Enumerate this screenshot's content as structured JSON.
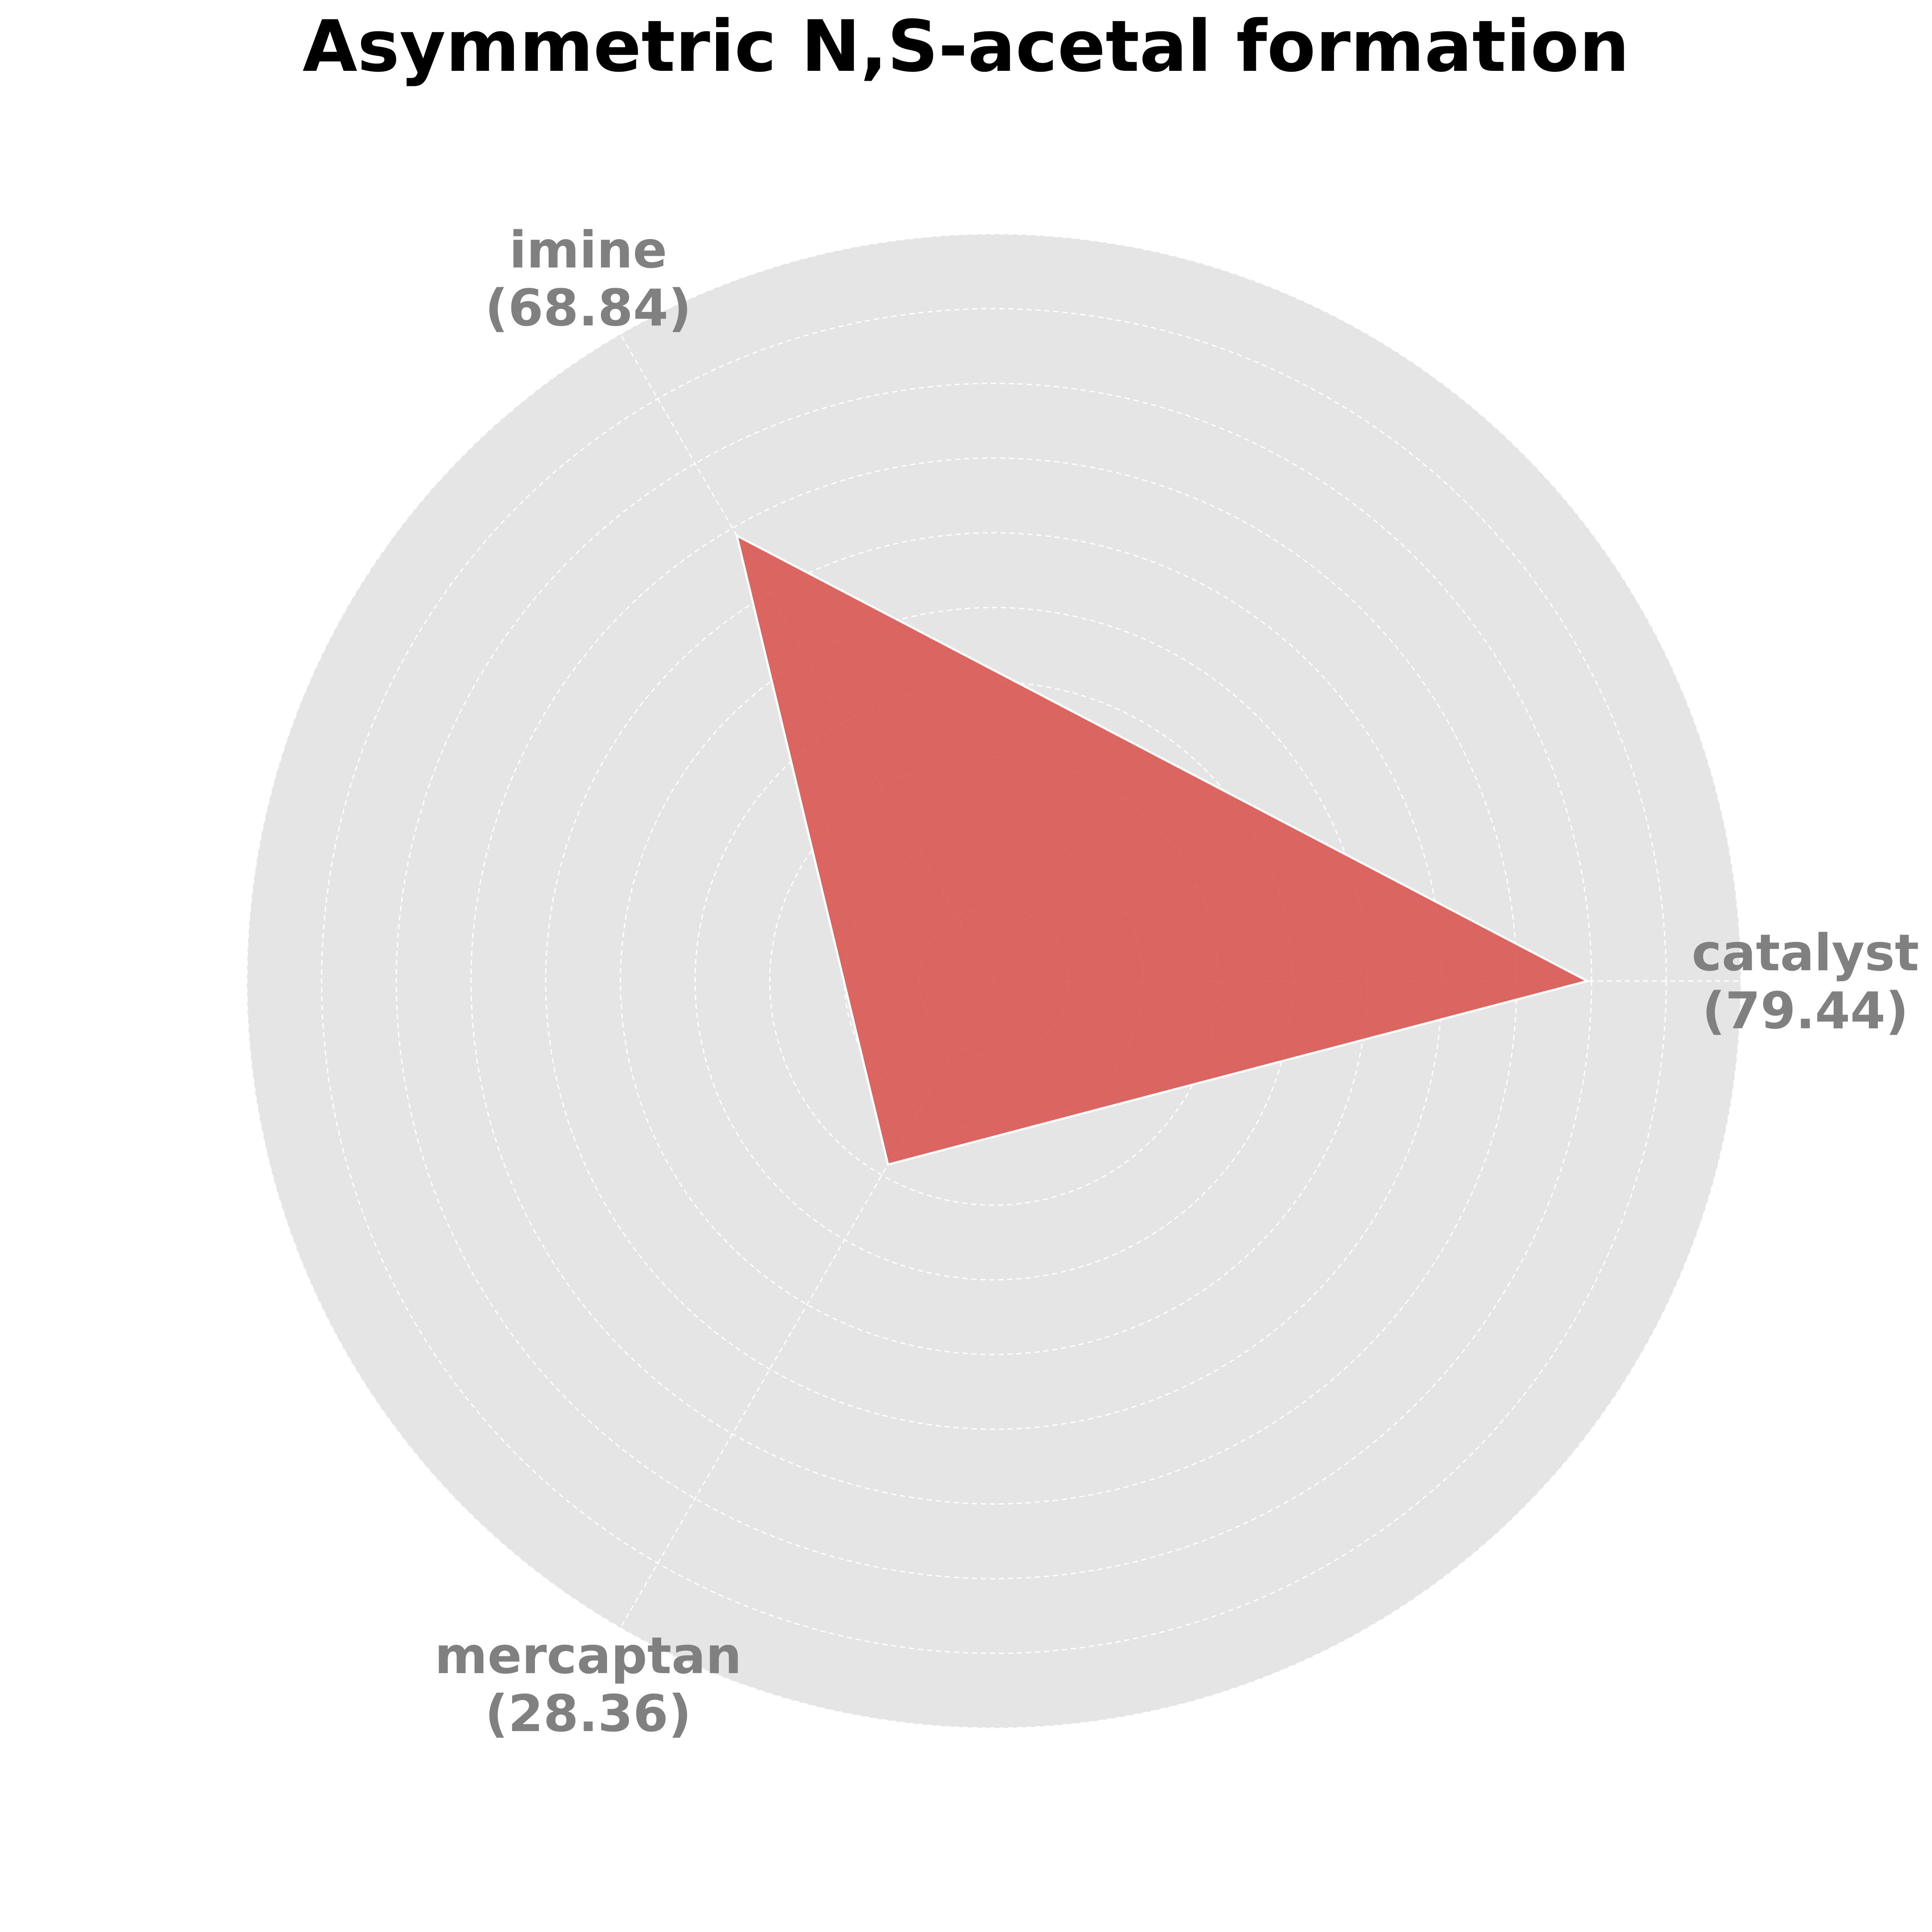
{
  "chart_data": {
    "type": "radar",
    "title": "Asymmetric N,S-acetal formation",
    "categories": [
      "catalyst",
      "imine",
      "mercaptan"
    ],
    "value_labels": [
      "(79.44)",
      "(68.84)",
      "(28.36)"
    ],
    "series": [
      {
        "values": [
          79.44,
          68.84,
          28.36
        ],
        "color": "#d9534f"
      }
    ],
    "rlim": [
      0,
      100
    ],
    "rings": [
      10,
      20,
      30,
      40,
      50,
      60,
      70,
      80,
      90,
      100
    ],
    "grid": true,
    "background_color": "#e5e5e5",
    "grid_color": "#ffffff",
    "label_color": "#808080"
  }
}
